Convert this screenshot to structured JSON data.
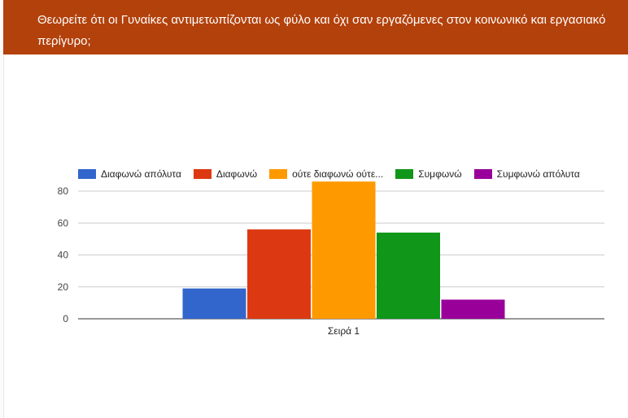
{
  "question": {
    "title": "Θεωρείτε ότι οι Γυναίκες αντιμετωπίζονται ως φύλο και όχι σαν εργαζόμενες στον κοινωνικό και εργασιακό περίγυρο;"
  },
  "chart_data": {
    "type": "bar",
    "categories": [
      "Σειρά 1"
    ],
    "series": [
      {
        "name": "Διαφωνώ απόλυτα",
        "values": [
          19
        ],
        "color": "#3366cc"
      },
      {
        "name": "Διαφωνώ",
        "values": [
          56
        ],
        "color": "#dc3912"
      },
      {
        "name": "ούτε διαφωνώ ούτε...",
        "values": [
          86
        ],
        "color": "#ff9900"
      },
      {
        "name": "Συμφωνώ",
        "values": [
          54
        ],
        "color": "#109618"
      },
      {
        "name": "Συμφωνώ απόλυτα",
        "values": [
          12
        ],
        "color": "#990099"
      }
    ],
    "yticks": [
      "0",
      "20",
      "40",
      "60",
      "80"
    ],
    "ylim": [
      0,
      80
    ],
    "grid": true,
    "legend_position": "top"
  }
}
